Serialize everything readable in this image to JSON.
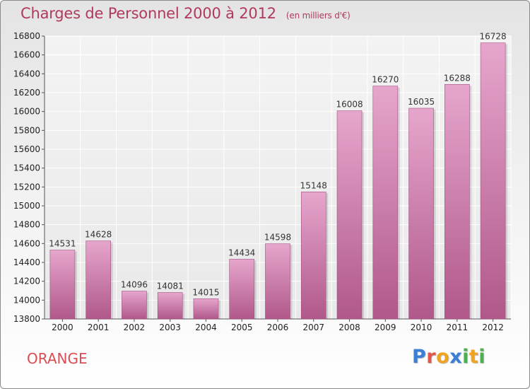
{
  "title": "Charges de Personnel 2000 à 2012",
  "subtitle": "(en milliers d'€)",
  "commune": "ORANGE",
  "logo": {
    "letters": [
      "P",
      "r",
      "o",
      "x",
      "i",
      "t",
      "i"
    ],
    "colors": [
      "#3a7fd5",
      "#e2564b",
      "#f0a31e",
      "#3a7fd5",
      "#4caf50",
      "#f0a31e",
      "#4caf50"
    ]
  },
  "colors": {
    "bar_top": "#e6a6cc",
    "bar_bottom": "#b0588a",
    "title": "#b03a5b",
    "commune": "#d94d55"
  },
  "chart_data": {
    "type": "bar",
    "categories": [
      "2000",
      "2001",
      "2002",
      "2003",
      "2004",
      "2005",
      "2006",
      "2007",
      "2008",
      "2009",
      "2010",
      "2011",
      "2012"
    ],
    "values": [
      14531,
      14628,
      14096,
      14081,
      14015,
      14434,
      14598,
      15148,
      16008,
      16270,
      16035,
      16288,
      16728
    ],
    "ylim": [
      13800,
      16800
    ],
    "yticks": [
      "13800",
      "14000",
      "14200",
      "14400",
      "14600",
      "14800",
      "15000",
      "15200",
      "15400",
      "15600",
      "15800",
      "16000",
      "16200",
      "16400",
      "16600",
      "16800"
    ],
    "grid": true,
    "title": "Charges de Personnel 2000 à 2012",
    "xlabel": "",
    "ylabel": ""
  }
}
